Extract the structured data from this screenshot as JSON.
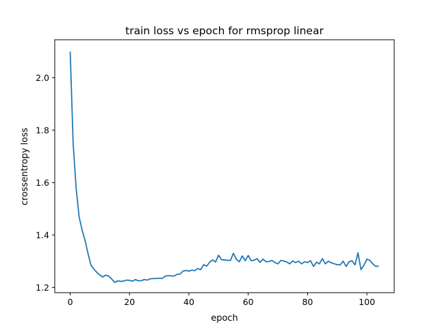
{
  "chart_data": {
    "type": "line",
    "title": "train loss vs epoch for rmsprop linear",
    "xlabel": "epoch",
    "ylabel": "crossentropy loss",
    "xlim": [
      -5.2,
      109.2
    ],
    "ylim": [
      1.18,
      2.145
    ],
    "xticks": [
      0,
      20,
      40,
      60,
      80,
      100
    ],
    "xtick_labels": [
      "0",
      "20",
      "40",
      "60",
      "80",
      "100"
    ],
    "yticks": [
      1.2,
      1.4,
      1.6,
      1.8,
      2.0
    ],
    "ytick_labels": [
      "1.2",
      "1.4",
      "1.6",
      "1.8",
      "2.0"
    ],
    "grid": false,
    "line_color": "#1f77b4",
    "series": [
      {
        "x": [
          0,
          1,
          2,
          3,
          4,
          5,
          6,
          7,
          8,
          9,
          10,
          11,
          12,
          13,
          14,
          15,
          16,
          17,
          18,
          19,
          20,
          21,
          22,
          23,
          24,
          25,
          26,
          27,
          28,
          29,
          30,
          31,
          32,
          33,
          34,
          35,
          36,
          37,
          38,
          39,
          40,
          41,
          42,
          43,
          44,
          45,
          46,
          47,
          48,
          49,
          50,
          51,
          52,
          53,
          54,
          55,
          56,
          57,
          58,
          59,
          60,
          61,
          62,
          63,
          64,
          65,
          66,
          67,
          68,
          69,
          70,
          71,
          72,
          73,
          74,
          75,
          76,
          77,
          78,
          79,
          80,
          81,
          82,
          83,
          84,
          85,
          86,
          87,
          88,
          89,
          90,
          91,
          92,
          93,
          94,
          95,
          96,
          97,
          98,
          99,
          100,
          101,
          102,
          103,
          104
        ],
        "y": [
          2.1,
          1.75,
          1.58,
          1.47,
          1.42,
          1.38,
          1.33,
          1.285,
          1.27,
          1.257,
          1.247,
          1.24,
          1.247,
          1.243,
          1.232,
          1.219,
          1.225,
          1.223,
          1.224,
          1.228,
          1.227,
          1.224,
          1.23,
          1.225,
          1.226,
          1.23,
          1.228,
          1.233,
          1.234,
          1.234,
          1.235,
          1.234,
          1.243,
          1.245,
          1.244,
          1.243,
          1.25,
          1.251,
          1.262,
          1.265,
          1.262,
          1.266,
          1.264,
          1.272,
          1.268,
          1.287,
          1.281,
          1.296,
          1.305,
          1.297,
          1.323,
          1.306,
          1.305,
          1.304,
          1.303,
          1.33,
          1.307,
          1.298,
          1.32,
          1.302,
          1.322,
          1.302,
          1.304,
          1.31,
          1.296,
          1.308,
          1.298,
          1.299,
          1.303,
          1.295,
          1.29,
          1.303,
          1.301,
          1.297,
          1.29,
          1.301,
          1.295,
          1.3,
          1.29,
          1.298,
          1.295,
          1.302,
          1.28,
          1.296,
          1.29,
          1.31,
          1.29,
          1.3,
          1.294,
          1.29,
          1.287,
          1.286,
          1.3,
          1.28,
          1.298,
          1.302,
          1.286,
          1.332,
          1.268,
          1.285,
          1.308,
          1.303,
          1.29,
          1.28,
          1.282
        ]
      }
    ]
  }
}
